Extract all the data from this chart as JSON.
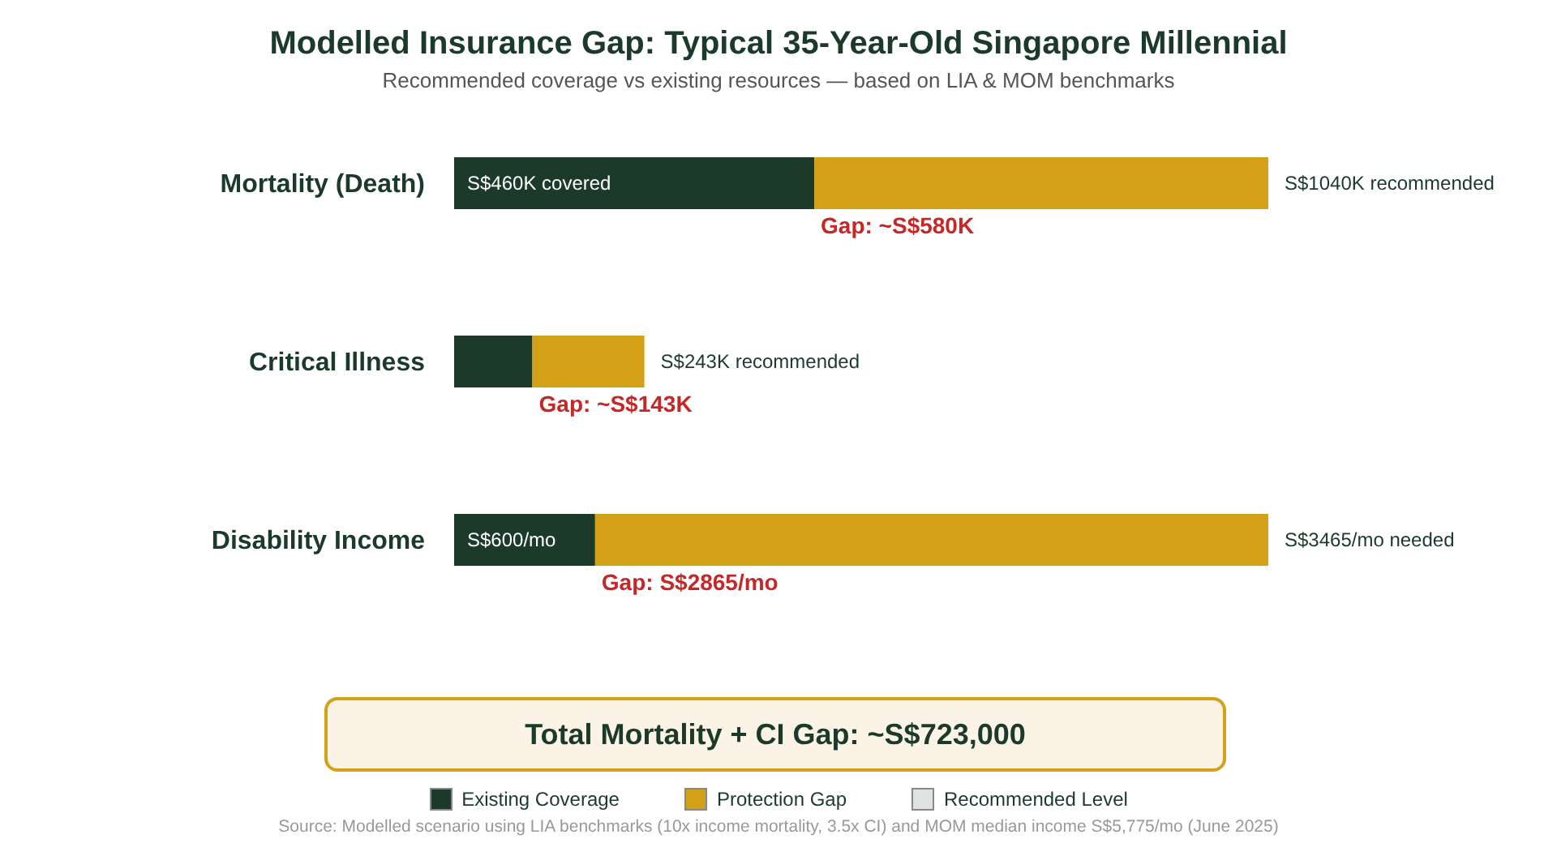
{
  "chart_data": [
    {
      "type": "bar",
      "orientation": "horizontal",
      "stacked": true,
      "title": "Modelled Insurance Gap: Typical 35-Year-Old Singapore Millennial",
      "subtitle": "Recommended coverage vs existing resources — based on LIA & MOM benchmarks",
      "categories": [
        "Mortality (Death)",
        "Critical Illness"
      ],
      "series": [
        {
          "color": "#1b3a2a",
          "values": [
            460000,
            100000
          ],
          "value_labels": [
            "S$460K covered",
            null
          ]
        },
        {
          "color": "#d4a017",
          "values": [
            580000,
            143000
          ],
          "value_labels": [
            "Gap: ~S$580K",
            "Gap: ~S$143K"
          ]
        }
      ],
      "totals": [
        "S$1040K recommended",
        "S$243K recommended"
      ],
      "legend": false
    },
    {
      "type": "bar",
      "orientation": "horizontal",
      "stacked": true,
      "categories": [
        "Disability Income"
      ],
      "series": [
        {
          "name": "Existing Coverage",
          "color": "#1b3a2a",
          "values": [
            600
          ],
          "value_labels": [
            "S$600/mo"
          ]
        },
        {
          "name": "Protection Gap",
          "color": "#d4a017",
          "values": [
            2865
          ],
          "value_labels": [
            "Gap: S$2865/mo"
          ]
        },
        {
          "name": "Recommended Level",
          "color": "#dfe3e0",
          "values": [
            null
          ]
        }
      ],
      "totals": [
        "S$3465/mo needed"
      ],
      "legend": "bottom",
      "annotations": [
        "Total Mortality + CI Gap: ~S$723,000",
        "Source: Modelled scenario using LIA benchmarks (10x income mortality, 3.5x CI) and MOM median income S$5,775/mo (June 2025)"
      ]
    }
  ]
}
